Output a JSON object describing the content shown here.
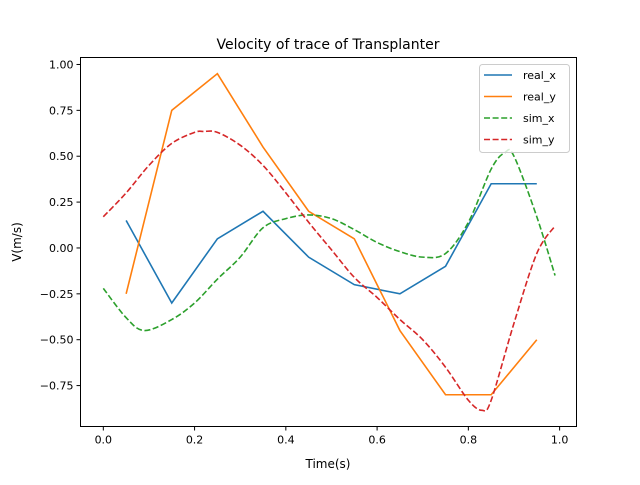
{
  "chart_data": {
    "type": "line",
    "title": "Velocity of trace of Transplanter",
    "xlabel": "Time(s)",
    "ylabel": "V(m/s)",
    "xlim": [
      -0.05,
      1.037
    ],
    "ylim": [
      -0.973,
      1.038
    ],
    "xticks": [
      0.0,
      0.2,
      0.4,
      0.6,
      0.8,
      1.0
    ],
    "xtick_labels": [
      "0.0",
      "0.2",
      "0.4",
      "0.6",
      "0.8",
      "1.0"
    ],
    "yticks": [
      1.0,
      0.75,
      0.5,
      0.25,
      0.0,
      -0.25,
      -0.5,
      -0.75
    ],
    "ytick_labels": [
      "1.00",
      "0.75",
      "0.50",
      "0.25",
      "0.00",
      "−0.25",
      "−0.50",
      "−0.75"
    ],
    "grid": false,
    "legend_position": "top-right",
    "series": [
      {
        "name": "real_x",
        "color": "#1f77b4",
        "style": "solid",
        "x": [
          0.05,
          0.15,
          0.25,
          0.35,
          0.45,
          0.55,
          0.65,
          0.75,
          0.85,
          0.95
        ],
        "y": [
          0.15,
          -0.3,
          0.05,
          0.2,
          -0.05,
          -0.2,
          -0.25,
          -0.1,
          0.35,
          0.35
        ]
      },
      {
        "name": "real_y",
        "color": "#ff7f0e",
        "style": "solid",
        "x": [
          0.05,
          0.15,
          0.25,
          0.35,
          0.45,
          0.55,
          0.65,
          0.75,
          0.85,
          0.95
        ],
        "y": [
          -0.25,
          0.75,
          0.95,
          0.55,
          0.2,
          0.05,
          -0.45,
          -0.8,
          -0.8,
          -0.5
        ]
      },
      {
        "name": "sim_x",
        "color": "#2ca02c",
        "style": "dashed",
        "x": [
          0,
          0.05,
          0.09,
          0.15,
          0.2,
          0.25,
          0.3,
          0.35,
          0.4,
          0.45,
          0.5,
          0.55,
          0.6,
          0.65,
          0.7,
          0.75,
          0.8,
          0.85,
          0.88,
          0.9,
          0.95,
          0.99
        ],
        "y": [
          -0.22,
          -0.38,
          -0.45,
          -0.39,
          -0.3,
          -0.17,
          -0.05,
          0.11,
          0.16,
          0.18,
          0.16,
          0.1,
          0.03,
          -0.02,
          -0.05,
          -0.03,
          0.14,
          0.43,
          0.52,
          0.5,
          0.17,
          -0.15
        ]
      },
      {
        "name": "sim_y",
        "color": "#d62728",
        "style": "dashed",
        "x": [
          0,
          0.05,
          0.1,
          0.15,
          0.2,
          0.22,
          0.25,
          0.3,
          0.35,
          0.4,
          0.45,
          0.5,
          0.55,
          0.6,
          0.65,
          0.7,
          0.75,
          0.8,
          0.83,
          0.85,
          0.9,
          0.95,
          0.99
        ],
        "y": [
          0.17,
          0.3,
          0.45,
          0.57,
          0.63,
          0.635,
          0.63,
          0.56,
          0.45,
          0.3,
          0.14,
          -0.01,
          -0.16,
          -0.27,
          -0.39,
          -0.5,
          -0.65,
          -0.83,
          -0.885,
          -0.83,
          -0.41,
          -0.03,
          0.12
        ]
      }
    ]
  }
}
